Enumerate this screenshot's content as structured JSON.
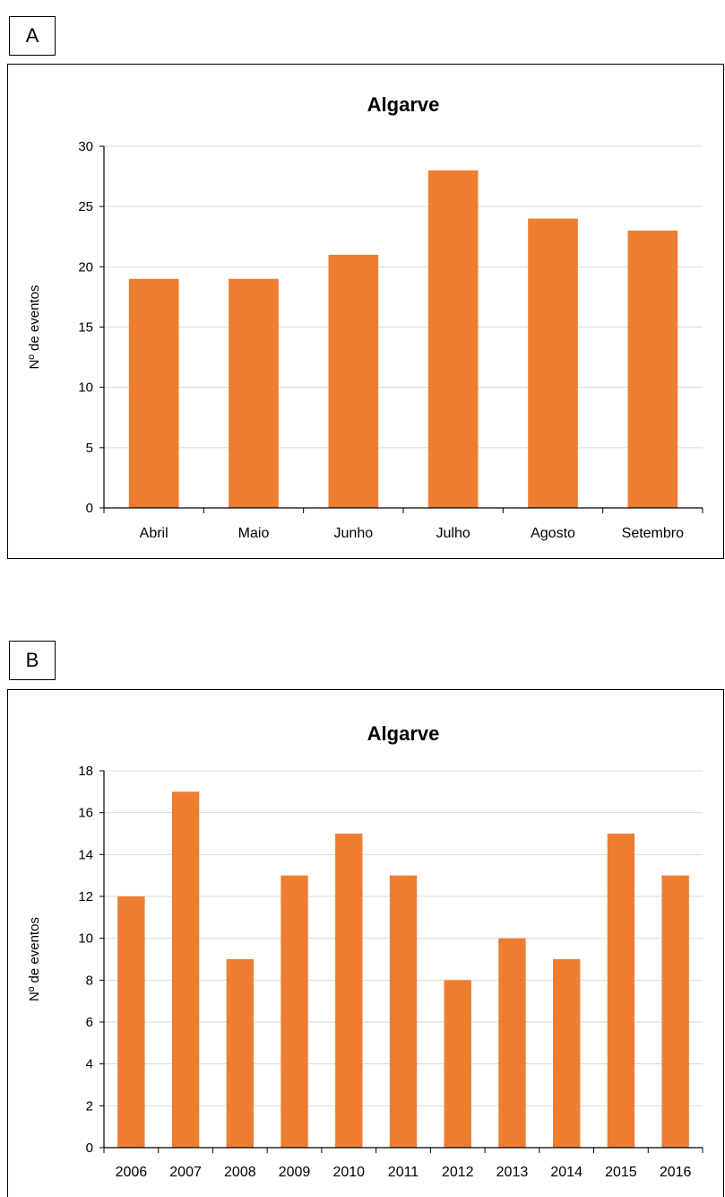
{
  "chart_data": [
    {
      "panel": "A",
      "type": "bar",
      "title": "Algarve",
      "xlabel": "",
      "ylabel": "Nº de eventos",
      "categories": [
        "Abril",
        "Maio",
        "Junho",
        "Julho",
        "Agosto",
        "Setembro"
      ],
      "values": [
        19,
        19,
        21,
        28,
        24,
        23
      ],
      "ylim": [
        0,
        30
      ],
      "yticks": [
        0,
        5,
        10,
        15,
        20,
        25,
        30
      ],
      "grid": true,
      "bar_color": "#ED7D31"
    },
    {
      "panel": "B",
      "type": "bar",
      "title": "Algarve",
      "xlabel": "",
      "ylabel": "Nº de eventos",
      "categories": [
        "2006",
        "2007",
        "2008",
        "2009",
        "2010",
        "2011",
        "2012",
        "2013",
        "2014",
        "2015",
        "2016"
      ],
      "values": [
        12,
        17,
        9,
        13,
        15,
        13,
        8,
        10,
        9,
        15,
        13
      ],
      "ylim": [
        0,
        18
      ],
      "yticks": [
        0,
        2,
        4,
        6,
        8,
        10,
        12,
        14,
        16,
        18
      ],
      "grid": true,
      "bar_color": "#ED7D31"
    }
  ],
  "colors": {
    "bar": "#ED7D31",
    "grid": "#D9D9D9",
    "axis": "#000000"
  }
}
